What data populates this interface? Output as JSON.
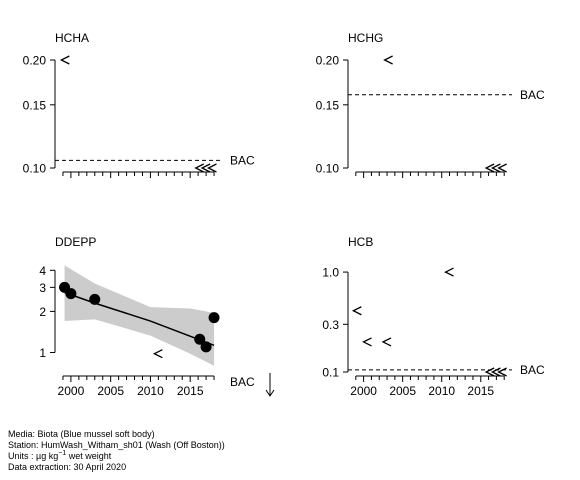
{
  "chart_data": [
    {
      "type": "scatter",
      "title": "HCHA",
      "y_scale": "log",
      "ylim": [
        0.1,
        0.2
      ],
      "y_ticks": [
        0.1,
        0.15,
        0.2
      ],
      "y_tick_labels": [
        "0.10",
        "0.15",
        "0.20"
      ],
      "xlim": [
        1998,
        2019
      ],
      "x_tick_labels_shown": false,
      "bac": {
        "label": "BAC",
        "value": 0.105
      },
      "points": [
        {
          "x": 1999.3,
          "y": 0.2,
          "marker": "<",
          "below_detection": true
        },
        {
          "x": 2016.2,
          "y": 0.1,
          "marker": "<",
          "below_detection": true
        },
        {
          "x": 2017.0,
          "y": 0.1,
          "marker": "<",
          "below_detection": true
        },
        {
          "x": 2017.8,
          "y": 0.1,
          "marker": "<",
          "below_detection": true
        }
      ]
    },
    {
      "type": "scatter",
      "title": "HCHG",
      "y_scale": "log",
      "ylim": [
        0.1,
        0.2
      ],
      "y_ticks": [
        0.1,
        0.15,
        0.2
      ],
      "y_tick_labels": [
        "0.10",
        "0.15",
        "0.20"
      ],
      "xlim": [
        1998,
        2019
      ],
      "x_tick_labels_shown": false,
      "bac": {
        "label": "BAC",
        "value": 0.16
      },
      "points": [
        {
          "x": 2003.2,
          "y": 0.2,
          "marker": "<",
          "below_detection": true
        },
        {
          "x": 2016.2,
          "y": 0.1,
          "marker": "<",
          "below_detection": true
        },
        {
          "x": 2017.0,
          "y": 0.1,
          "marker": "<",
          "below_detection": true
        },
        {
          "x": 2017.8,
          "y": 0.1,
          "marker": "<",
          "below_detection": true
        }
      ]
    },
    {
      "type": "scatter",
      "title": "DDEPP",
      "y_scale": "log",
      "ylim": [
        0.72,
        4.3
      ],
      "y_ticks": [
        1,
        2,
        3,
        4
      ],
      "y_tick_labels": [
        "1",
        "2",
        "3",
        "4"
      ],
      "xlim": [
        1998,
        2019
      ],
      "x_tick_labels_shown": true,
      "x_ticks": [
        2000,
        2005,
        2010,
        2015
      ],
      "x_tick_labels": [
        "2000",
        "2005",
        "2010",
        "2015"
      ],
      "bac": {
        "label": "BAC",
        "below_axis": true,
        "arrow": "down"
      },
      "points": [
        {
          "x": 1999.2,
          "y": 3.0,
          "marker": "filled-circle"
        },
        {
          "x": 2000.0,
          "y": 2.7,
          "marker": "filled-circle"
        },
        {
          "x": 2003.0,
          "y": 2.45,
          "marker": "filled-circle"
        },
        {
          "x": 2011.0,
          "y": 0.98,
          "marker": "<",
          "below_detection": true
        },
        {
          "x": 2016.2,
          "y": 1.25,
          "marker": "filled-circle"
        },
        {
          "x": 2017.0,
          "y": 1.1,
          "marker": "filled-circle"
        },
        {
          "x": 2018.0,
          "y": 1.8,
          "marker": "filled-circle"
        }
      ],
      "trend": [
        {
          "x": 1999.2,
          "y": 2.75
        },
        {
          "x": 2003.0,
          "y": 2.3
        },
        {
          "x": 2010.0,
          "y": 1.7
        },
        {
          "x": 2018.0,
          "y": 1.13
        }
      ],
      "confidence_band": [
        {
          "x": 1999.2,
          "lo": 1.7,
          "hi": 4.35
        },
        {
          "x": 2003.0,
          "lo": 1.75,
          "hi": 3.2
        },
        {
          "x": 2010.0,
          "lo": 1.33,
          "hi": 2.15
        },
        {
          "x": 2015.0,
          "lo": 0.98,
          "hi": 2.1
        },
        {
          "x": 2018.0,
          "lo": 0.8,
          "hi": 1.95
        }
      ]
    },
    {
      "type": "scatter",
      "title": "HCB",
      "y_scale": "log",
      "ylim": [
        0.1,
        1.15
      ],
      "y_ticks": [
        0.1,
        0.3,
        1.0
      ],
      "y_tick_labels": [
        "0.1",
        "0.3",
        "1.0"
      ],
      "xlim": [
        1998,
        2019
      ],
      "x_tick_labels_shown": true,
      "x_ticks": [
        2000,
        2005,
        2010,
        2015
      ],
      "x_tick_labels": [
        "2000",
        "2005",
        "2010",
        "2015"
      ],
      "bac": {
        "label": "BAC",
        "value": 0.105
      },
      "points": [
        {
          "x": 1999.2,
          "y": 0.41,
          "marker": "<",
          "below_detection": true
        },
        {
          "x": 2000.5,
          "y": 0.2,
          "marker": "<",
          "below_detection": true
        },
        {
          "x": 2003.0,
          "y": 0.2,
          "marker": "<",
          "below_detection": true
        },
        {
          "x": 2011.0,
          "y": 1.0,
          "marker": "<",
          "below_detection": true
        },
        {
          "x": 2016.2,
          "y": 0.1,
          "marker": "<",
          "below_detection": true
        },
        {
          "x": 2017.0,
          "y": 0.1,
          "marker": "<",
          "below_detection": true
        },
        {
          "x": 2017.8,
          "y": 0.1,
          "marker": "<",
          "below_detection": true
        }
      ]
    }
  ],
  "footer": {
    "media": "Media: Biota (Blue mussel soft body)",
    "station": "Station: HumWash_Witham_sh01 (Wash (Off Boston))",
    "units_prefix": "Units : ",
    "units_mu": "µg kg",
    "units_exp": "−1",
    "units_suffix": " wet weight",
    "extraction": "Data extraction: 30 April 2020"
  }
}
